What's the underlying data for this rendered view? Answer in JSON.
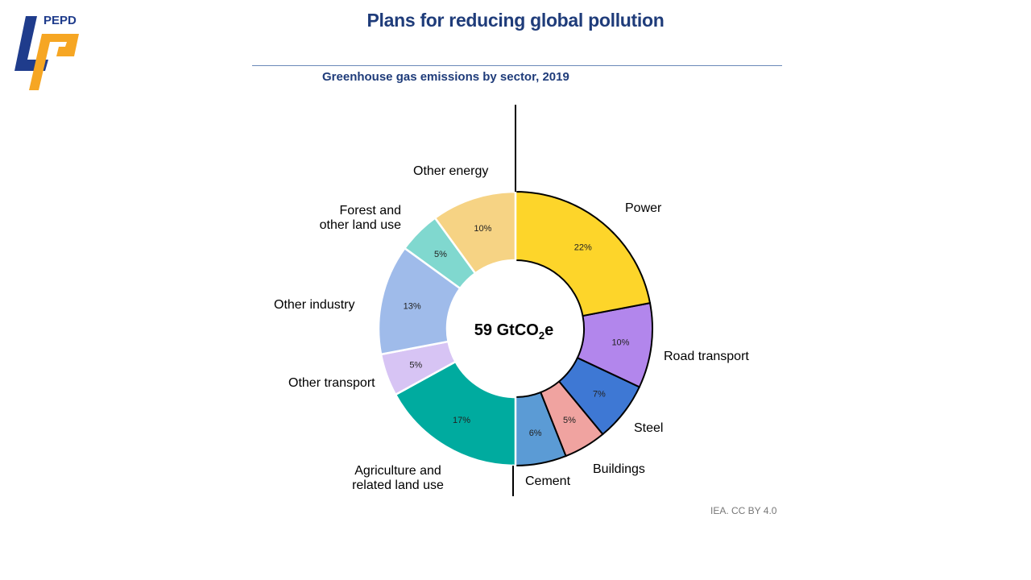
{
  "header": {
    "title": "Plans for reducing global pollution",
    "logo_text": "PEPD"
  },
  "chart_data": {
    "type": "pie",
    "donut": true,
    "title": "Greenhouse gas emissions by sector, 2019",
    "center_label": {
      "main": "59 GtCO",
      "sub": "2",
      "suffix": "e"
    },
    "source": "IEA. CC BY 4.0",
    "slices": [
      {
        "label": "Power",
        "value": 22,
        "pct": "22%",
        "color": "#fdd52a"
      },
      {
        "label": "Road transport",
        "value": 10,
        "pct": "10%",
        "color": "#b286ec"
      },
      {
        "label": "Steel",
        "value": 7,
        "pct": "7%",
        "color": "#3e78d4"
      },
      {
        "label": "Buildings",
        "value": 5,
        "pct": "5%",
        "color": "#f0a3a0"
      },
      {
        "label": "Cement",
        "value": 6,
        "pct": "6%",
        "color": "#5b9bd5"
      },
      {
        "label": "Agriculture and related land use",
        "value": 17,
        "pct": "17%",
        "color": "#00ab9f"
      },
      {
        "label": "Other transport",
        "value": 5,
        "pct": "5%",
        "color": "#d7c4f4"
      },
      {
        "label": "Other industry",
        "value": 13,
        "pct": "13%",
        "color": "#9fbbea"
      },
      {
        "label": "Forest and other land use",
        "value": 5,
        "pct": "5%",
        "color": "#80d8cf"
      },
      {
        "label": "Other energy",
        "value": 10,
        "pct": "10%",
        "color": "#f6d384"
      }
    ]
  }
}
